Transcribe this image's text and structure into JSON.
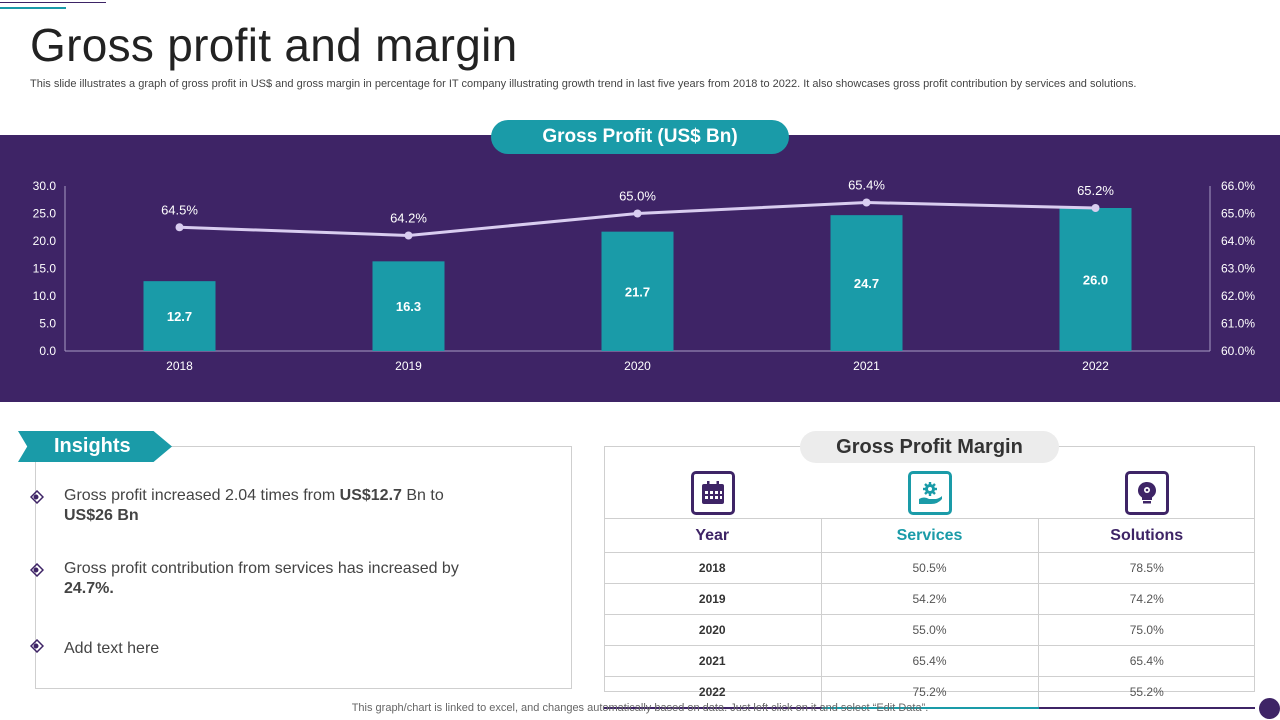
{
  "title": "Gross profit and margin",
  "subtitle": "This slide illustrates a graph of gross profit in US$ and gross margin in percentage for IT  company illustrating growth trend in last five years from 2018 to 2022. It also showcases gross profit contribution by services and solutions.",
  "chart_data": {
    "type": "bar",
    "title": "Gross Profit (US$ Bn)",
    "categories": [
      "2018",
      "2019",
      "2020",
      "2021",
      "2022"
    ],
    "series": [
      {
        "name": "Gross Profit (US$ Bn)",
        "type": "bar",
        "axis": "left",
        "values": [
          12.7,
          16.3,
          21.7,
          24.7,
          26.0
        ],
        "labels": [
          "12.7",
          "16.3",
          "21.7",
          "24.7",
          "26.0"
        ]
      },
      {
        "name": "Gross Margin (%)",
        "type": "line",
        "axis": "right",
        "values": [
          64.5,
          64.2,
          65.0,
          65.4,
          65.2
        ],
        "labels": [
          "64.5%",
          "64.2%",
          "65.0%",
          "65.4%",
          "65.2%"
        ]
      }
    ],
    "ylim": [
      0,
      30
    ],
    "y_ticks": [
      "0.0",
      "5.0",
      "10.0",
      "15.0",
      "20.0",
      "25.0",
      "30.0"
    ],
    "y2lim": [
      60,
      66
    ],
    "y2_ticks": [
      "60.0%",
      "61.0%",
      "62.0%",
      "63.0%",
      "64.0%",
      "65.0%",
      "66.0%"
    ],
    "colors": {
      "bar": "#1a9ba8",
      "line": "#d9cdf0",
      "background": "#3e2466"
    }
  },
  "insights": {
    "label": "Insights",
    "items": [
      {
        "pre": "Gross profit increased 2.04 times from ",
        "b1": "US$12.7",
        "mid": " Bn to ",
        "b2": "US$26 Bn"
      },
      {
        "pre": "Gross profit contribution from services has increased by ",
        "b1": "24.7%."
      },
      {
        "pre": "Add text here"
      }
    ]
  },
  "margin_table": {
    "title": "Gross Profit Margin",
    "headers": [
      "Year",
      "Services",
      "Solutions"
    ],
    "icons": [
      "calendar-icon",
      "hand-gear-icon",
      "bulb-gear-icon"
    ],
    "rows": [
      [
        "2018",
        "50.5%",
        "78.5%"
      ],
      [
        "2019",
        "54.2%",
        "74.2%"
      ],
      [
        "2020",
        "55.0%",
        "75.0%"
      ],
      [
        "2021",
        "65.4%",
        "65.4%"
      ],
      [
        "2022",
        "75.2%",
        "55.2%"
      ]
    ]
  },
  "footer": "This graph/chart is linked to excel,  and changes automatically based on data. Just left click on it and select “Edit Data”.",
  "colors": {
    "purple": "#3e2466",
    "teal": "#1a9ba8"
  }
}
